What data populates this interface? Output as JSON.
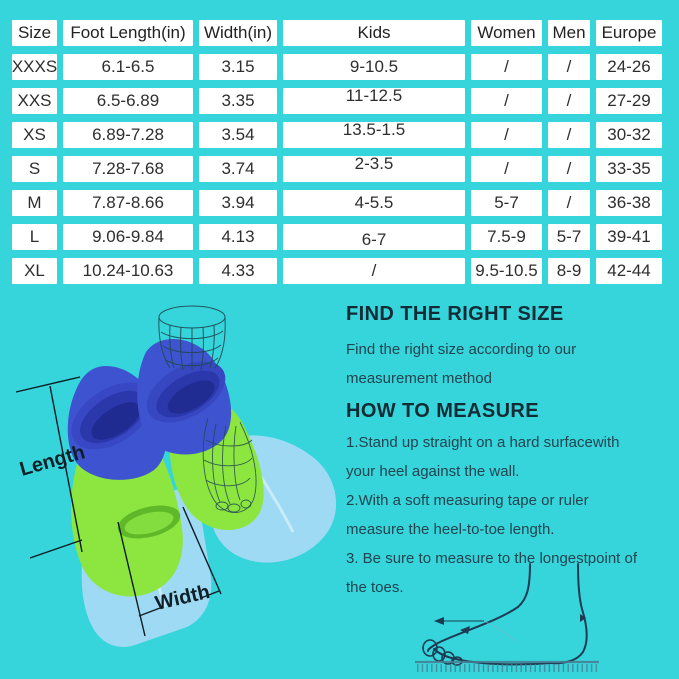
{
  "colors": {
    "background": "#35d5db",
    "cell_background": "#ffffff",
    "table_text": "#2e2e2e",
    "heading_text": "#122b35",
    "body_text": "#23444f",
    "fin_blue": "#3e53d0",
    "fin_blue_dark": "#27359f",
    "fin_green": "#8ce63f",
    "fin_green_dark": "#5fb827",
    "fin_blade_blue": "#9edaf3",
    "wireframe_line": "#214752",
    "dimension_line": "#0f1b22",
    "foot_outline": "#1d3b52",
    "ruler": "#4a7c92"
  },
  "table": {
    "headers": [
      "Size",
      "Foot Length(in)",
      "Width(in)",
      "Kids",
      "Women",
      "Men",
      "Europe"
    ],
    "rows": [
      [
        "XXXS",
        "6.1-6.5",
        "3.15",
        "9-10.5",
        "/",
        "/",
        "24-26"
      ],
      [
        "XXS",
        "6.5-6.89",
        "3.35",
        "11-12.5",
        "/",
        "/",
        "27-29"
      ],
      [
        "XS",
        "6.89-7.28",
        "3.54",
        "13.5-1.5",
        "/",
        "/",
        "30-32"
      ],
      [
        "S",
        "7.28-7.68",
        "3.74",
        "2-3.5",
        "/",
        "/",
        "33-35"
      ],
      [
        "M",
        "7.87-8.66",
        "3.94",
        "4-5.5",
        "5-7",
        "/",
        "36-38"
      ],
      [
        "L",
        "9.06-9.84",
        "4.13",
        "6-7",
        "7.5-9",
        "5-7",
        "39-41"
      ],
      [
        "XL",
        "10.24-10.63",
        "4.33",
        "/",
        "9.5-10.5",
        "8-9",
        "42-44"
      ]
    ]
  },
  "info": {
    "heading_find": "FIND THE RIGHT SIZE",
    "intro_lines": [
      "Find the right size according to our",
      "measurement method"
    ],
    "heading_measure": "HOW TO MEASURE",
    "step_lines": [
      "1.Stand up straight on a hard surfacewith",
      "your heel against the wall.",
      "2.With a soft measuring tape or ruler",
      "measure the heel-to-toe length.",
      "3. Be sure to measure to the longestpoint of",
      "the toes."
    ]
  },
  "diagram": {
    "length_label": "Length",
    "width_label": "Width"
  }
}
